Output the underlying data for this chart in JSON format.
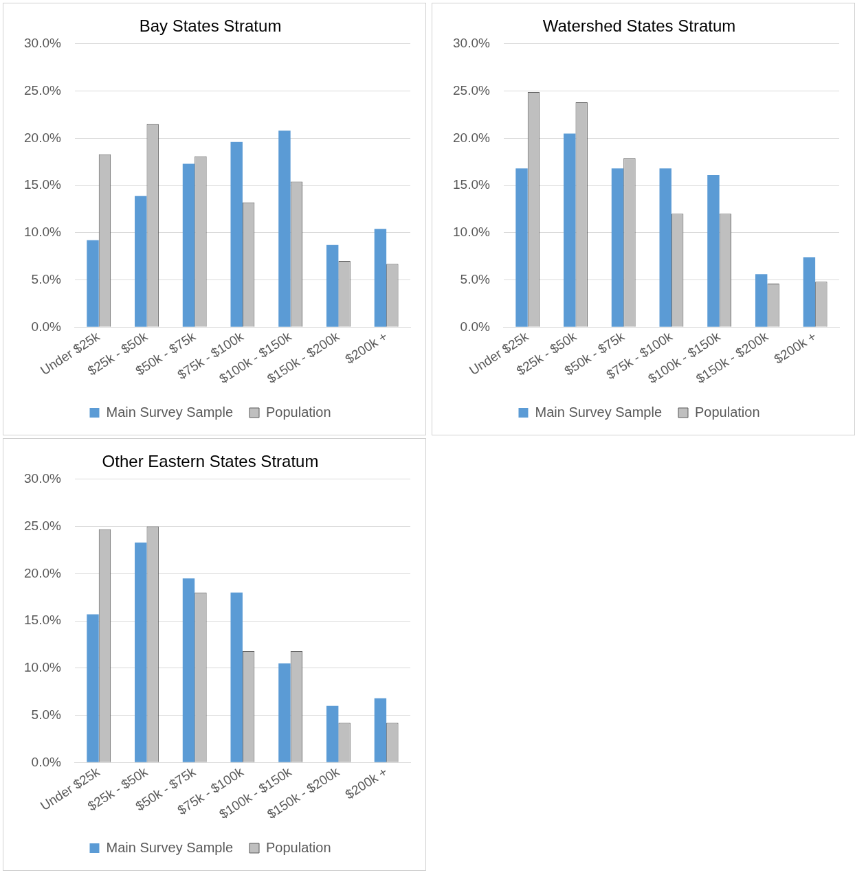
{
  "chart_data": [
    {
      "type": "bar",
      "title": "Bay States Stratum",
      "categories": [
        "Under $25k",
        "$25k - $50k",
        "$50k - $75k",
        "$75k - $100k",
        "$100k - $150k",
        "$150k - $200k",
        "$200k +"
      ],
      "series": [
        {
          "name": "Main Survey Sample",
          "color": "#5b9bd5",
          "values": [
            9.2,
            13.9,
            17.3,
            19.6,
            20.8,
            8.7,
            10.4
          ]
        },
        {
          "name": "Population",
          "color": "#bfbfbf",
          "values": [
            18.3,
            21.5,
            18.1,
            13.2,
            15.4,
            7.0,
            6.7
          ]
        }
      ],
      "ylim": [
        0,
        30
      ],
      "yticks": [
        {
          "value": 0,
          "label": "0.0%"
        },
        {
          "value": 5,
          "label": "5.0%"
        },
        {
          "value": 10,
          "label": "10.0%"
        },
        {
          "value": 15,
          "label": "15.0%"
        },
        {
          "value": 20,
          "label": "20.0%"
        },
        {
          "value": 25,
          "label": "25.0%"
        },
        {
          "value": 30,
          "label": "30.0%"
        }
      ],
      "grid": "y",
      "legend": "bottom"
    },
    {
      "type": "bar",
      "title": "Watershed States Stratum",
      "categories": [
        "Under $25k",
        "$25k - $50k",
        "$50k - $75k",
        "$75k - $100k",
        "$100k - $150k",
        "$150k - $200k",
        "$200k +"
      ],
      "series": [
        {
          "name": "Main Survey Sample",
          "color": "#5b9bd5",
          "values": [
            16.8,
            20.5,
            16.8,
            16.8,
            16.1,
            5.6,
            7.4
          ]
        },
        {
          "name": "Population",
          "color": "#bfbfbf",
          "values": [
            24.9,
            23.8,
            17.9,
            12.0,
            12.0,
            4.6,
            4.8
          ]
        }
      ],
      "ylim": [
        0,
        30
      ],
      "yticks": [
        {
          "value": 0,
          "label": "0.0%"
        },
        {
          "value": 5,
          "label": "5.0%"
        },
        {
          "value": 10,
          "label": "10.0%"
        },
        {
          "value": 15,
          "label": "15.0%"
        },
        {
          "value": 20,
          "label": "20.0%"
        },
        {
          "value": 25,
          "label": "25.0%"
        },
        {
          "value": 30,
          "label": "30.0%"
        }
      ],
      "grid": "y",
      "legend": "bottom"
    },
    {
      "type": "bar",
      "title": "Other Eastern States Stratum",
      "categories": [
        "Under $25k",
        "$25k - $50k",
        "$50k - $75k",
        "$75k - $100k",
        "$100k - $150k",
        "$150k - $200k",
        "$200k +"
      ],
      "series": [
        {
          "name": "Main Survey Sample",
          "color": "#5b9bd5",
          "values": [
            15.7,
            23.3,
            19.5,
            18.0,
            10.5,
            6.0,
            6.8
          ]
        },
        {
          "name": "Population",
          "color": "#bfbfbf",
          "values": [
            24.7,
            25.0,
            18.0,
            11.8,
            11.8,
            4.2,
            4.2
          ]
        }
      ],
      "ylim": [
        0,
        30
      ],
      "yticks": [
        {
          "value": 0,
          "label": "0.0%"
        },
        {
          "value": 5,
          "label": "5.0%"
        },
        {
          "value": 10,
          "label": "10.0%"
        },
        {
          "value": 15,
          "label": "15.0%"
        },
        {
          "value": 20,
          "label": "20.0%"
        },
        {
          "value": 25,
          "label": "25.0%"
        },
        {
          "value": 30,
          "label": "30.0%"
        }
      ],
      "grid": "y",
      "legend": "bottom"
    }
  ]
}
